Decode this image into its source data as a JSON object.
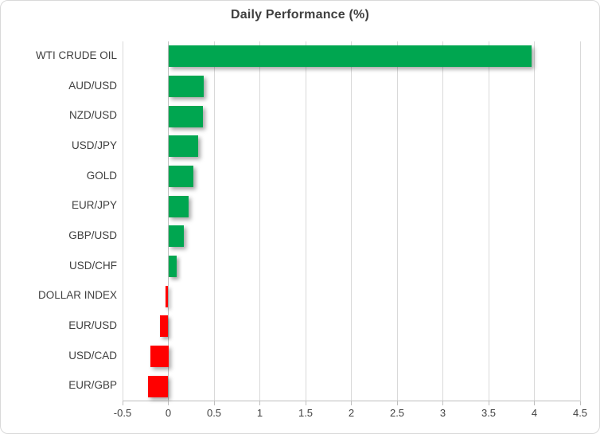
{
  "chart_data": {
    "type": "bar",
    "orientation": "horizontal",
    "title": "Daily Performance (%)",
    "categories": [
      "WTI CRUDE OIL",
      "AUD/USD",
      "NZD/USD",
      "USD/JPY",
      "GOLD",
      "EUR/JPY",
      "GBP/USD",
      "USD/CHF",
      "DOLLAR INDEX",
      "EUR/USD",
      "USD/CAD",
      "EUR/GBP"
    ],
    "values": [
      3.97,
      0.39,
      0.38,
      0.33,
      0.27,
      0.22,
      0.17,
      0.09,
      -0.03,
      -0.09,
      -0.2,
      -0.22
    ],
    "xlabel": "",
    "ylabel": "",
    "xlim": [
      -0.5,
      4.5
    ],
    "x_tick_labels": [
      "-0.5",
      "0",
      "0.5",
      "1",
      "1.5",
      "2",
      "2.5",
      "3",
      "3.5",
      "4",
      "4.5"
    ],
    "x_tick_values": [
      -0.5,
      0,
      0.5,
      1,
      1.5,
      2,
      2.5,
      3,
      3.5,
      4,
      4.5
    ],
    "grid": "vertical",
    "legend": "none",
    "colors": {
      "positive": "#00A650",
      "negative": "#FF0000",
      "gridline": "#D9D9D9",
      "axis_line": "#BFBFBF",
      "text": "#404040",
      "title_text": "#3F3F3F"
    }
  }
}
